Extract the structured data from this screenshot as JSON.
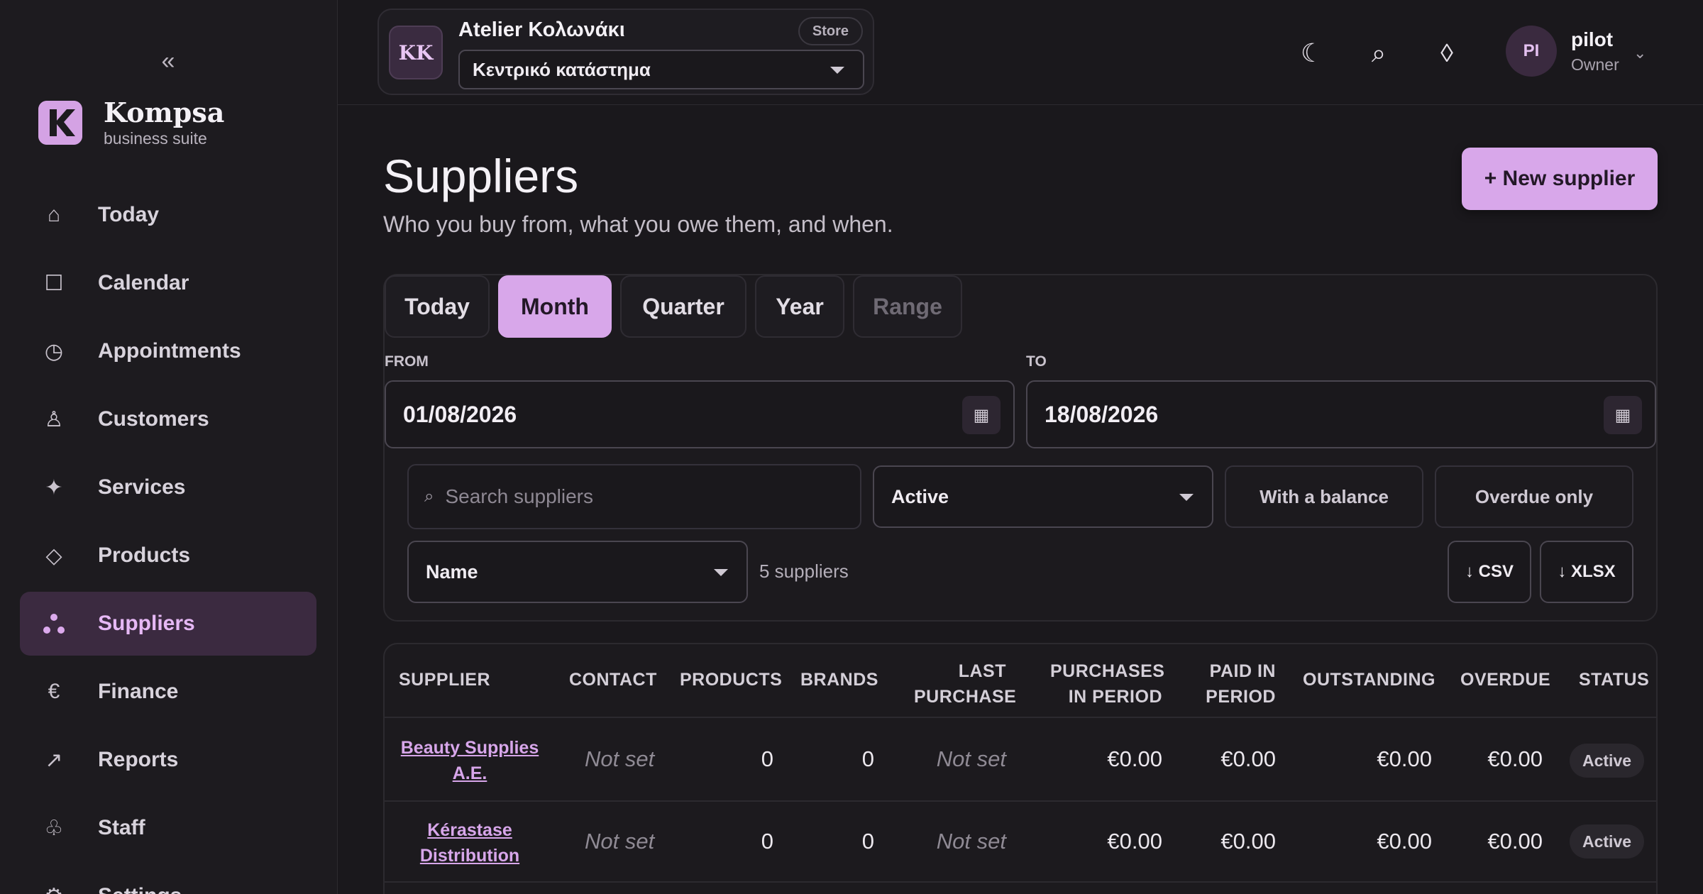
{
  "sidebar": {
    "collapse_glyph": "«",
    "brand_name": "Kompsa",
    "brand_sub": "business suite",
    "items": [
      {
        "label": "Today",
        "icon": "home-icon"
      },
      {
        "label": "Calendar",
        "icon": "calendar-icon"
      },
      {
        "label": "Appointments",
        "icon": "clock-icon"
      },
      {
        "label": "Customers",
        "icon": "person-icon"
      },
      {
        "label": "Services",
        "icon": "sparkle-icon"
      },
      {
        "label": "Products",
        "icon": "diamond-icon"
      },
      {
        "label": "Suppliers",
        "icon": "suppliers-icon",
        "active": true
      },
      {
        "label": "Finance",
        "icon": "euro-icon"
      },
      {
        "label": "Reports",
        "icon": "trend-arrow-icon"
      },
      {
        "label": "Staff",
        "icon": "staff-icon"
      },
      {
        "label": "Settings",
        "icon": "gear-icon"
      }
    ]
  },
  "store": {
    "initials": "KK",
    "name": "Atelier Κολωνάκι",
    "badge": "Store",
    "location": "Κεντρικό κατάστημα"
  },
  "user": {
    "initials": "PI",
    "name": "pilot",
    "role": "Owner"
  },
  "header": {
    "title": "Suppliers",
    "subtitle": "Who you buy from, what you owe them, and when.",
    "new_button": "+ New supplier"
  },
  "periods": [
    "Today",
    "Month",
    "Quarter",
    "Year",
    "Range"
  ],
  "active_period": "Month",
  "dates": {
    "from_label": "FROM",
    "from_value": "01/08/2026",
    "to_label": "TO",
    "to_value": "18/08/2026"
  },
  "filters": {
    "search_placeholder": "Search suppliers",
    "status_value": "Active",
    "with_balance": "With a balance",
    "overdue_only": "Overdue only",
    "sort_value": "Name",
    "count_text": "5 suppliers",
    "csv_label": "↓ CSV",
    "xlsx_label": "↓ XLSX"
  },
  "table": {
    "headers": {
      "supplier": "SUPPLIER",
      "contact": "CONTACT",
      "products": "PRODUCTS",
      "brands": "BRANDS",
      "last_purchase_1": "LAST",
      "last_purchase_2": "PURCHASE",
      "purchases_1": "PURCHASES",
      "purchases_2": "IN PERIOD",
      "paid_1": "PAID IN",
      "paid_2": "PERIOD",
      "outstanding": "OUTSTANDING",
      "overdue": "OVERDUE",
      "status": "STATUS"
    },
    "rows": [
      {
        "name_1": "Beauty Supplies",
        "name_2": "A.E.",
        "contact": "Not set",
        "products": "0",
        "brands": "0",
        "last_purchase": "Not set",
        "purchases": "€0.00",
        "paid": "€0.00",
        "outstanding": "€0.00",
        "overdue": "€0.00",
        "status": "Active"
      },
      {
        "name_1": "Kérastase",
        "name_2": "Distribution",
        "contact": "Not set",
        "products": "0",
        "brands": "0",
        "last_purchase": "Not set",
        "purchases": "€0.00",
        "paid": "€0.00",
        "outstanding": "€0.00",
        "overdue": "€0.00",
        "status": "Active"
      }
    ]
  },
  "colors": {
    "accent": "#d8a7ea",
    "background": "#1a181c",
    "sidebar_active": "#3b2a40"
  }
}
